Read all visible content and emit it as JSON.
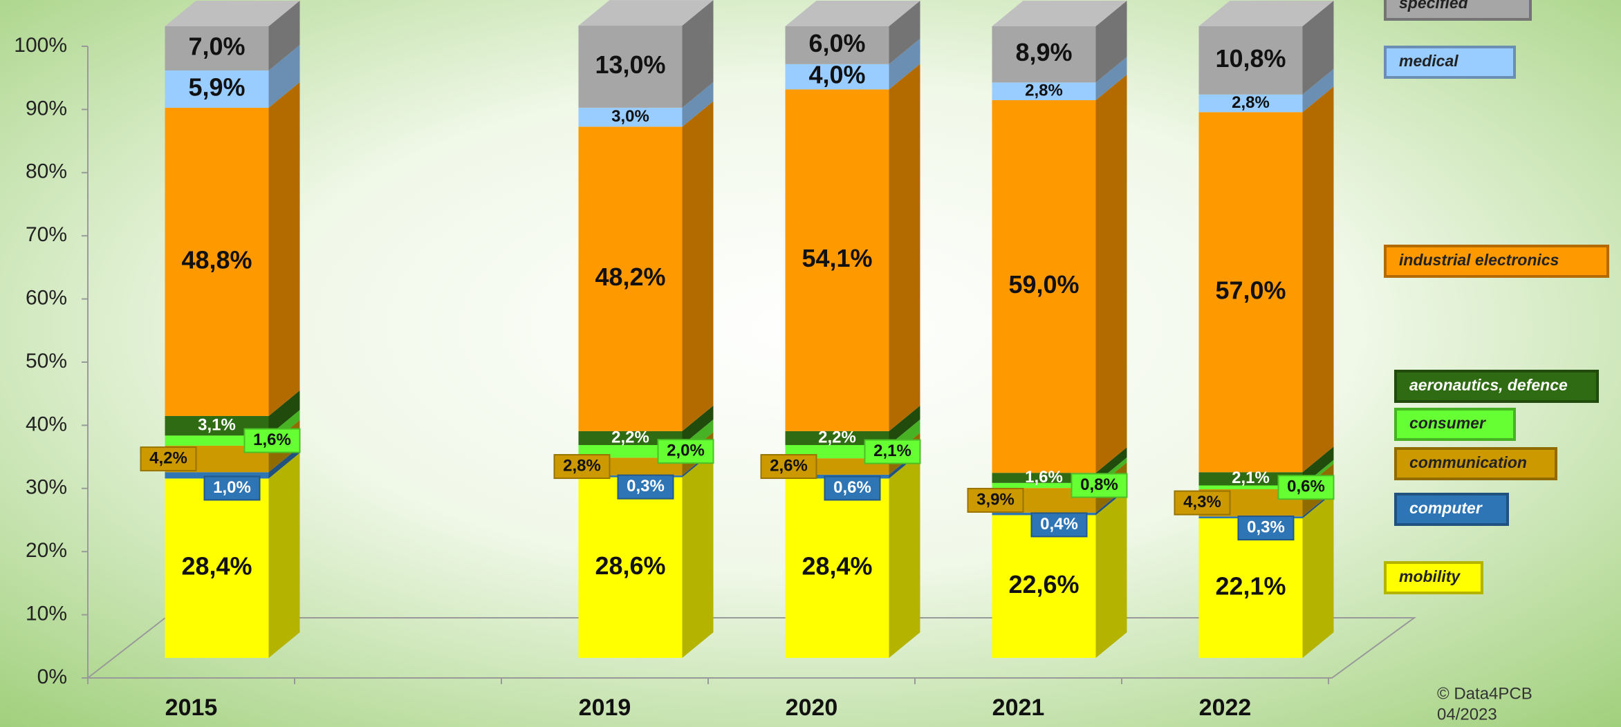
{
  "chart_data": {
    "type": "bar",
    "stacked": true,
    "categories": [
      "2015",
      null,
      "2019",
      "2020",
      "2021",
      "2022"
    ],
    "series": [
      {
        "name": "mobility",
        "color": "#ffff00",
        "values": [
          28.4,
          null,
          28.6,
          28.4,
          22.6,
          22.1
        ],
        "value_labels": [
          "28,4%",
          null,
          "28,6%",
          "28,4%",
          "22,6%",
          "22,1%"
        ]
      },
      {
        "name": "computer",
        "color": "#2e75b6",
        "values": [
          1.0,
          null,
          0.3,
          0.6,
          0.4,
          0.3
        ],
        "value_labels": [
          "1,0%",
          null,
          "0,3%",
          "0,6%",
          "0,4%",
          "0,3%"
        ]
      },
      {
        "name": "communication",
        "color": "#cc9900",
        "values": [
          4.2,
          null,
          2.8,
          2.6,
          3.9,
          4.3
        ],
        "value_labels": [
          "4,2%",
          null,
          "2,8%",
          "2,6%",
          "3,9%",
          "4,3%"
        ]
      },
      {
        "name": "consumer",
        "color": "#66ff33",
        "values": [
          1.6,
          null,
          2.0,
          2.1,
          0.8,
          0.6
        ],
        "value_labels": [
          "1,6%",
          null,
          "2,0%",
          "2,1%",
          "0,8%",
          "0,6%"
        ]
      },
      {
        "name": "aeronautics, defence",
        "color": "#2f6b12",
        "values": [
          3.1,
          null,
          2.2,
          2.2,
          1.6,
          2.1
        ],
        "value_labels": [
          "3,1%",
          null,
          "2,2%",
          "2,2%",
          "1,6%",
          "2,1%"
        ]
      },
      {
        "name": "industrial electronics",
        "color": "#ff9900",
        "values": [
          48.8,
          null,
          48.2,
          54.1,
          59.0,
          57.0
        ],
        "value_labels": [
          "48,8%",
          null,
          "48,2%",
          "54,1%",
          "59,0%",
          "57,0%"
        ]
      },
      {
        "name": "medical",
        "color": "#99ccff",
        "values": [
          5.9,
          null,
          3.0,
          4.0,
          2.8,
          2.8
        ],
        "value_labels": [
          "5,9%",
          null,
          "3,0%",
          "4,0%",
          "2,8%",
          "2,8%"
        ]
      },
      {
        "name": "specified",
        "color": "#a6a6a6",
        "values": [
          7.0,
          null,
          13.0,
          6.0,
          8.9,
          10.8
        ],
        "value_labels": [
          "7,0%",
          null,
          "13,0%",
          "6,0%",
          "8,9%",
          "10,8%"
        ]
      }
    ],
    "ylim": [
      0,
      100
    ],
    "yticks": [
      {
        "value": 0,
        "label": "0%"
      },
      {
        "value": 10,
        "label": "10%"
      },
      {
        "value": 20,
        "label": "20%"
      },
      {
        "value": 30,
        "label": "30%"
      },
      {
        "value": 40,
        "label": "40%"
      },
      {
        "value": 50,
        "label": "50%"
      },
      {
        "value": 60,
        "label": "60%"
      },
      {
        "value": 70,
        "label": "70%"
      },
      {
        "value": 80,
        "label": "80%"
      },
      {
        "value": 90,
        "label": "90%"
      },
      {
        "value": 100,
        "label": "100%"
      }
    ],
    "credit": "© Data4PCB",
    "date": "04/2023"
  }
}
